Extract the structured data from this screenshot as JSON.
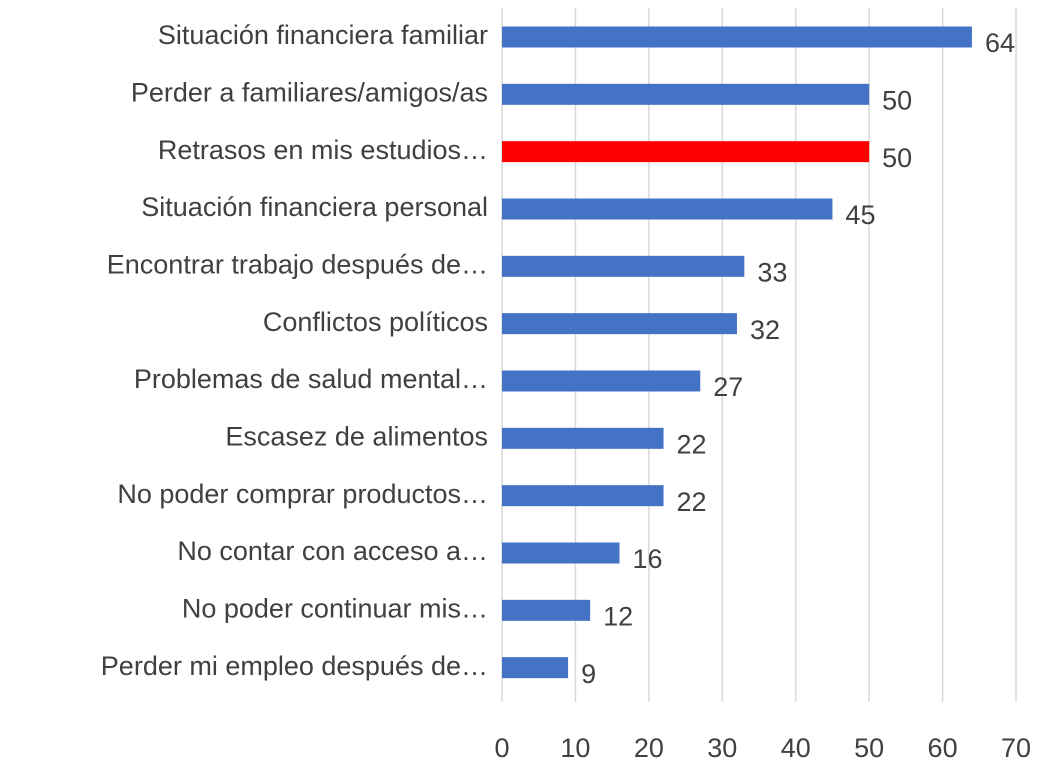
{
  "chart_data": {
    "type": "bar",
    "orientation": "horizontal",
    "categories": [
      "Situación financiera familiar",
      "Perder a familiares/amigos/as",
      "Retrasos en mis estudios…",
      "Situación financiera personal",
      "Encontrar trabajo después de…",
      "Conflictos políticos",
      "Problemas de salud mental…",
      "Escasez de alimentos",
      "No poder comprar productos…",
      "No contar con acceso a…",
      "No poder continuar mis…",
      "Perder mi empleo después de…"
    ],
    "values": [
      64,
      50,
      50,
      45,
      33,
      32,
      27,
      22,
      22,
      16,
      12,
      9
    ],
    "colors": [
      "#4472c4",
      "#4472c4",
      "#ff0000",
      "#4472c4",
      "#4472c4",
      "#4472c4",
      "#4472c4",
      "#4472c4",
      "#4472c4",
      "#4472c4",
      "#4472c4",
      "#4472c4"
    ],
    "xlim": [
      0,
      70
    ],
    "xticks": [
      0,
      10,
      20,
      30,
      40,
      50,
      60,
      70
    ],
    "grid": true
  }
}
